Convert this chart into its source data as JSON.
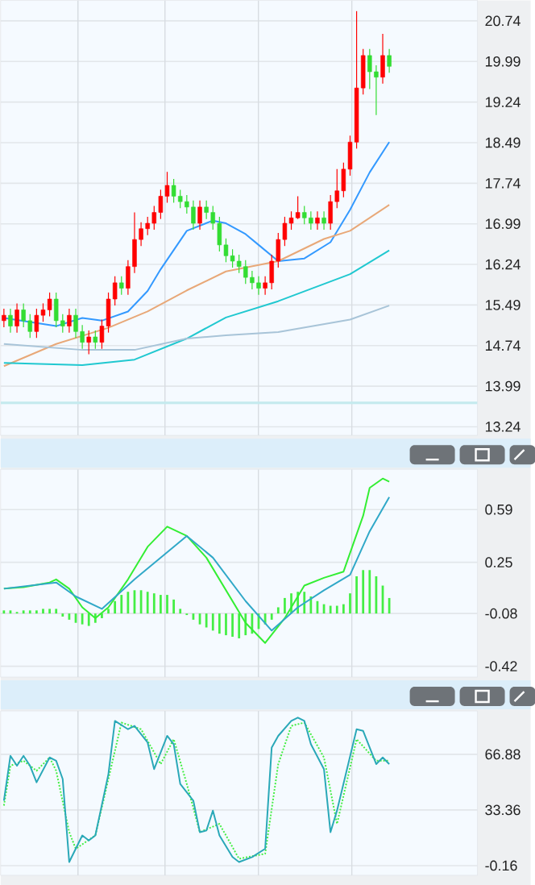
{
  "chart_data": [
    {
      "type": "candlestick",
      "categories": [
        null,
        null,
        null,
        null,
        null,
        null,
        null,
        null,
        null,
        null,
        null,
        null,
        null,
        null,
        null,
        null,
        null,
        null,
        null,
        null,
        null,
        null,
        null,
        null,
        null,
        null,
        null,
        null,
        null,
        null,
        null,
        null,
        null,
        null,
        null,
        null,
        null,
        null,
        null,
        null,
        null,
        null,
        null,
        null,
        null,
        null,
        null,
        null,
        null,
        null,
        null,
        null,
        null,
        null,
        null,
        null,
        null,
        null,
        null,
        null,
        null,
        null,
        null,
        null,
        null,
        null,
        null,
        null,
        null,
        null,
        null,
        null,
        null
      ],
      "ohlc": [
        [
          15.2,
          15.42,
          15.08,
          15.3
        ],
        [
          15.3,
          15.42,
          14.98,
          15.1
        ],
        [
          15.1,
          15.52,
          14.98,
          15.4
        ],
        [
          15.4,
          15.52,
          15.08,
          15.2
        ],
        [
          15.2,
          15.32,
          14.88,
          15.0
        ],
        [
          15.0,
          15.42,
          14.88,
          15.3
        ],
        [
          15.3,
          15.52,
          15.18,
          15.4
        ],
        [
          15.4,
          15.72,
          15.28,
          15.6
        ],
        [
          15.6,
          15.72,
          15.08,
          15.2
        ],
        [
          15.2,
          15.32,
          14.98,
          15.1
        ],
        [
          15.1,
          15.42,
          14.98,
          15.3
        ],
        [
          15.3,
          15.42,
          14.88,
          15.0
        ],
        [
          15.0,
          15.12,
          14.68,
          14.8
        ],
        [
          14.8,
          15.02,
          14.58,
          14.9
        ],
        [
          14.9,
          15.02,
          14.68,
          14.8
        ],
        [
          14.8,
          15.22,
          14.68,
          15.1
        ],
        [
          15.1,
          15.72,
          14.98,
          15.6
        ],
        [
          15.6,
          16.02,
          15.48,
          15.9
        ],
        [
          15.9,
          16.02,
          15.68,
          15.8
        ],
        [
          15.8,
          16.32,
          15.68,
          16.2
        ],
        [
          16.2,
          17.2,
          16.08,
          16.7
        ],
        [
          16.7,
          17.02,
          16.58,
          16.9
        ],
        [
          16.9,
          17.12,
          16.78,
          17.0
        ],
        [
          17.0,
          17.32,
          16.88,
          17.2
        ],
        [
          17.2,
          17.62,
          17.08,
          17.5
        ],
        [
          17.5,
          17.95,
          17.38,
          17.7
        ],
        [
          17.7,
          17.82,
          17.38,
          17.5
        ],
        [
          17.5,
          17.62,
          17.28,
          17.4
        ],
        [
          17.4,
          17.52,
          17.18,
          17.3
        ],
        [
          17.3,
          17.42,
          16.88,
          17.0
        ],
        [
          17.0,
          17.42,
          16.88,
          17.3
        ],
        [
          17.3,
          17.42,
          17.08,
          17.2
        ],
        [
          17.2,
          17.32,
          16.88,
          17.0
        ],
        [
          17.0,
          17.12,
          16.48,
          16.6
        ],
        [
          16.6,
          16.72,
          16.28,
          16.4
        ],
        [
          16.4,
          16.52,
          16.18,
          16.3
        ],
        [
          16.3,
          16.42,
          16.08,
          16.2
        ],
        [
          16.2,
          16.32,
          15.88,
          16.0
        ],
        [
          16.0,
          16.12,
          15.78,
          15.9
        ],
        [
          15.9,
          16.02,
          15.68,
          15.8
        ],
        [
          15.8,
          16.02,
          15.68,
          15.9
        ],
        [
          15.9,
          16.42,
          15.78,
          16.3
        ],
        [
          16.3,
          16.82,
          16.18,
          16.7
        ],
        [
          16.7,
          17.12,
          16.58,
          17.0
        ],
        [
          17.0,
          17.22,
          16.88,
          17.1
        ],
        [
          17.1,
          17.5,
          17.08,
          17.2
        ],
        [
          17.2,
          17.32,
          16.98,
          17.1
        ],
        [
          17.1,
          17.22,
          16.88,
          17.0
        ],
        [
          17.0,
          17.22,
          16.88,
          17.1
        ],
        [
          17.1,
          17.22,
          16.88,
          17.0
        ],
        [
          17.0,
          17.52,
          16.88,
          17.4
        ],
        [
          17.4,
          18.0,
          17.28,
          17.6
        ],
        [
          17.6,
          18.12,
          17.48,
          18.0
        ],
        [
          18.0,
          18.62,
          17.88,
          18.5
        ],
        [
          18.5,
          20.92,
          18.38,
          19.5
        ],
        [
          19.5,
          20.22,
          19.38,
          20.1
        ],
        [
          20.1,
          20.22,
          19.48,
          19.8
        ],
        [
          19.8,
          19.92,
          19.0,
          19.7
        ],
        [
          19.7,
          20.5,
          19.58,
          20.1
        ],
        [
          20.1,
          20.22,
          19.78,
          19.9
        ],
        null,
        null,
        null,
        null,
        null,
        null,
        null,
        null,
        null,
        null,
        null,
        null,
        null
      ],
      "colors": [
        "#ff0000",
        "#33dd33",
        "#ff0000",
        "#33dd33",
        "#33dd33",
        "#ff0000",
        "#ff0000",
        "#ff0000",
        "#33dd33",
        "#33dd33",
        "#ff0000",
        "#33dd33",
        "#33dd33",
        "#ff0000",
        "#33dd33",
        "#ff0000",
        "#ff0000",
        "#ff0000",
        "#33dd33",
        "#ff0000",
        "#ff0000",
        "#ff0000",
        "#ff0000",
        "#ff0000",
        "#ff0000",
        "#ff0000",
        "#33dd33",
        "#33dd33",
        "#33dd33",
        "#33dd33",
        "#ff0000",
        "#33dd33",
        "#33dd33",
        "#33dd33",
        "#33dd33",
        "#33dd33",
        "#33dd33",
        "#33dd33",
        "#33dd33",
        "#33dd33",
        "#ff0000",
        "#ff0000",
        "#ff0000",
        "#ff0000",
        "#ff0000",
        "#ff0000",
        "#33dd33",
        "#33dd33",
        "#ff0000",
        "#33dd33",
        "#ff0000",
        "#ff0000",
        "#ff0000",
        "#ff0000",
        "#ff0000",
        "#ff0000",
        "#33dd33",
        "#33dd33",
        "#ff0000",
        "#33dd33",
        null,
        null,
        null,
        null,
        null,
        null,
        null,
        null,
        null,
        null,
        null,
        null,
        null
      ],
      "series": [
        {
          "type": "line",
          "color": "#3399ff",
          "values": [
            15.25,
            null,
            null,
            null,
            null,
            null,
            null,
            null,
            15.1,
            null,
            null,
            null,
            15.25,
            null,
            null,
            15.2,
            null,
            null,
            null,
            15.37,
            null,
            null,
            15.75,
            null,
            16.15,
            null,
            null,
            null,
            16.86,
            null,
            null,
            null,
            17.05,
            null,
            17.0,
            null,
            null,
            16.8,
            null,
            16.6,
            null,
            null,
            16.3,
            null,
            null,
            null,
            16.35,
            null,
            null,
            null,
            16.65,
            null,
            null,
            17.25,
            null,
            null,
            17.94,
            null,
            null,
            18.5,
            null,
            null,
            null,
            null,
            null,
            null,
            null,
            null,
            null,
            null,
            null,
            null,
            null
          ]
        },
        {
          "type": "line",
          "color": "#e8a878",
          "values": [
            14.36,
            null,
            null,
            null,
            null,
            null,
            null,
            null,
            14.77,
            null,
            null,
            null,
            null,
            null,
            null,
            null,
            15.07,
            null,
            null,
            null,
            null,
            null,
            15.37,
            null,
            null,
            null,
            null,
            null,
            15.76,
            null,
            null,
            null,
            null,
            null,
            16.11,
            null,
            null,
            null,
            null,
            null,
            null,
            null,
            16.3,
            null,
            null,
            null,
            null,
            null,
            null,
            16.71,
            null,
            null,
            null,
            16.86,
            null,
            null,
            null,
            null,
            null,
            17.34,
            null,
            null,
            null,
            null,
            null,
            null,
            null,
            null,
            null,
            null,
            null,
            null,
            null
          ]
        },
        {
          "type": "line",
          "color": "#20c8d0",
          "values": [
            14.42,
            null,
            null,
            null,
            null,
            null,
            null,
            null,
            null,
            null,
            null,
            null,
            14.38,
            null,
            null,
            null,
            null,
            null,
            null,
            null,
            14.48,
            null,
            null,
            null,
            null,
            null,
            null,
            null,
            14.87,
            null,
            null,
            null,
            null,
            null,
            15.26,
            null,
            null,
            null,
            null,
            null,
            null,
            null,
            15.56,
            null,
            null,
            null,
            null,
            null,
            null,
            null,
            null,
            null,
            null,
            16.06,
            null,
            null,
            null,
            null,
            null,
            16.5,
            null,
            null,
            null,
            null,
            null,
            null,
            null,
            null,
            null,
            null,
            null,
            null,
            null
          ]
        },
        {
          "type": "line",
          "color": "#a8c4d8",
          "values": [
            14.77,
            null,
            null,
            null,
            null,
            null,
            null,
            null,
            null,
            null,
            null,
            null,
            14.66,
            null,
            null,
            null,
            null,
            null,
            null,
            null,
            14.66,
            null,
            null,
            null,
            null,
            null,
            null,
            null,
            14.87,
            null,
            null,
            null,
            null,
            null,
            14.93,
            null,
            null,
            null,
            null,
            null,
            null,
            null,
            14.99,
            null,
            null,
            null,
            null,
            null,
            null,
            null,
            null,
            null,
            null,
            15.22,
            null,
            null,
            null,
            null,
            null,
            15.48,
            null,
            null,
            null,
            null,
            null,
            null,
            null,
            null,
            null,
            null,
            null,
            null,
            null
          ]
        }
      ],
      "ylim": [
        13.08,
        21.12
      ],
      "yticks": [
        13.24,
        13.99,
        14.74,
        15.49,
        16.24,
        16.99,
        17.74,
        18.49,
        19.24,
        19.99,
        20.74
      ],
      "grid": "y",
      "tick_labels": "y",
      "ref_lines": [
        {
          "axis": "y",
          "value": 13.68,
          "color": "#c4eaee"
        }
      ]
    },
    {
      "type": "line",
      "categories": [
        null,
        null,
        null,
        null,
        null,
        null,
        null,
        null,
        null,
        null,
        null,
        null,
        null,
        null,
        null,
        null,
        null,
        null,
        null,
        null,
        null,
        null,
        null,
        null,
        null,
        null,
        null,
        null,
        null,
        null,
        null,
        null,
        null,
        null,
        null,
        null,
        null,
        null,
        null,
        null,
        null,
        null,
        null,
        null,
        null,
        null,
        null,
        null,
        null,
        null,
        null,
        null,
        null,
        null,
        null,
        null,
        null,
        null,
        null,
        null,
        null,
        null,
        null,
        null,
        null,
        null,
        null,
        null,
        null,
        null,
        null,
        null,
        null
      ],
      "series": [
        {
          "type": "bar",
          "color": "#44ee44",
          "base": [
            -0.08,
            -0.08,
            -0.08,
            -0.08,
            -0.08,
            -0.08,
            -0.08,
            -0.08,
            -0.08,
            -0.08,
            -0.08,
            -0.08,
            -0.08,
            -0.08,
            -0.08,
            -0.08,
            -0.08,
            -0.08,
            -0.08,
            -0.08,
            -0.08,
            -0.08,
            -0.08,
            -0.08,
            -0.08,
            -0.08,
            -0.08,
            -0.08,
            -0.08,
            -0.08,
            -0.08,
            -0.08,
            -0.08,
            -0.08,
            -0.08,
            -0.08,
            -0.08,
            -0.08,
            -0.08,
            -0.08,
            -0.08,
            -0.08,
            -0.08,
            -0.08,
            -0.08,
            -0.08,
            -0.08,
            -0.08,
            -0.08,
            -0.08,
            -0.08,
            -0.08,
            -0.08,
            -0.08,
            -0.08,
            -0.08,
            -0.08,
            -0.08,
            -0.08,
            -0.08,
            null,
            null,
            null,
            null,
            null,
            null,
            null,
            null,
            null,
            null,
            null,
            null,
            null
          ],
          "values": [
            0.02,
            0.02,
            0.01,
            0.02,
            0.02,
            0.02,
            0.03,
            0.03,
            0.03,
            -0.02,
            -0.04,
            -0.06,
            -0.07,
            -0.08,
            -0.06,
            -0.03,
            0.03,
            0.08,
            0.12,
            0.14,
            0.15,
            0.15,
            0.14,
            0.13,
            0.12,
            0.12,
            0.09,
            0.03,
            -0.01,
            -0.04,
            -0.07,
            -0.09,
            -0.11,
            -0.13,
            -0.14,
            -0.15,
            -0.16,
            -0.14,
            -0.13,
            -0.1,
            -0.07,
            -0.04,
            0.04,
            0.1,
            0.13,
            0.14,
            0.14,
            0.11,
            0.08,
            0.06,
            0.05,
            0.05,
            0.06,
            0.13,
            0.24,
            0.28,
            0.28,
            0.24,
            0.18,
            0.1,
            null,
            null,
            null,
            null,
            null,
            null,
            null,
            null,
            null,
            null,
            null,
            null,
            null
          ]
        },
        {
          "type": "line",
          "color": "#33ee33",
          "values": [
            0.08,
            null,
            null,
            0.09,
            null,
            null,
            null,
            0.12,
            0.14,
            null,
            0.08,
            null,
            -0.04,
            null,
            -0.11,
            null,
            -0.04,
            null,
            null,
            0.14,
            null,
            null,
            0.35,
            null,
            null,
            0.48,
            null,
            null,
            0.42,
            null,
            null,
            0.28,
            null,
            null,
            0.07,
            null,
            null,
            -0.14,
            null,
            null,
            -0.27,
            null,
            null,
            -0.11,
            null,
            null,
            0.1,
            null,
            null,
            0.15,
            null,
            null,
            0.19,
            null,
            null,
            0.55,
            0.73,
            null,
            0.79,
            0.77,
            null,
            null,
            null,
            null,
            null,
            null,
            null,
            null,
            null,
            null,
            null,
            null,
            null
          ]
        },
        {
          "type": "line",
          "color": "#30a8c8",
          "values": [
            0.08,
            null,
            null,
            null,
            null,
            null,
            null,
            null,
            0.12,
            null,
            null,
            0.03,
            null,
            null,
            null,
            -0.05,
            null,
            null,
            null,
            null,
            0.14,
            null,
            null,
            null,
            null,
            null,
            null,
            null,
            0.42,
            null,
            null,
            null,
            0.28,
            null,
            null,
            null,
            null,
            0.0,
            null,
            null,
            null,
            -0.19,
            null,
            null,
            null,
            -0.04,
            null,
            null,
            null,
            0.07,
            null,
            null,
            null,
            0.17,
            null,
            null,
            0.45,
            null,
            null,
            0.67,
            null,
            null,
            null,
            null,
            null,
            null,
            null,
            null,
            null,
            null,
            null,
            null,
            null
          ]
        }
      ],
      "ylim": [
        -0.49,
        0.85
      ],
      "yticks": [
        -0.42,
        -0.08,
        0.25,
        0.59
      ],
      "grid": "y",
      "tick_labels": "y"
    },
    {
      "type": "line",
      "categories": [
        null,
        null,
        null,
        null,
        null,
        null,
        null,
        null,
        null,
        null,
        null,
        null,
        null,
        null,
        null,
        null,
        null,
        null,
        null,
        null,
        null,
        null,
        null,
        null,
        null,
        null,
        null,
        null,
        null,
        null,
        null,
        null,
        null,
        null,
        null,
        null,
        null,
        null,
        null,
        null,
        null,
        null,
        null,
        null,
        null,
        null,
        null,
        null,
        null,
        null,
        null,
        null,
        null,
        null,
        null,
        null,
        null,
        null,
        null,
        null,
        null,
        null,
        null,
        null,
        null,
        null,
        null,
        null,
        null,
        null,
        null,
        null,
        null
      ],
      "series": [
        {
          "color": "#44ee44",
          "line_style": "dotted",
          "values": [
            36,
            60,
            null,
            63,
            null,
            57,
            null,
            65,
            57,
            null,
            20,
            10,
            null,
            null,
            18,
            null,
            52,
            null,
            86,
            null,
            null,
            82,
            null,
            null,
            61,
            null,
            76,
            null,
            49,
            null,
            20,
            null,
            null,
            25,
            null,
            null,
            4,
            null,
            null,
            null,
            7,
            null,
            61,
            null,
            84,
            null,
            86,
            null,
            null,
            65,
            null,
            25,
            null,
            null,
            76,
            null,
            null,
            63,
            null,
            63,
            null,
            null,
            null,
            null,
            null,
            null,
            null,
            null,
            null,
            null,
            null,
            null,
            null
          ]
        },
        {
          "color": "#2aa8b8",
          "values": [
            39,
            66,
            60,
            66,
            60,
            50,
            null,
            65,
            63,
            52,
            2,
            null,
            18,
            15,
            18,
            null,
            55,
            87,
            null,
            82,
            84,
            null,
            74,
            58,
            null,
            78,
            73,
            49,
            null,
            39,
            20,
            21,
            33,
            18,
            null,
            5,
            2,
            null,
            5,
            null,
            10,
            71,
            78,
            null,
            87,
            89,
            87,
            73,
            null,
            58,
            20,
            33,
            null,
            null,
            82,
            81,
            null,
            61,
            65,
            61,
            null,
            null,
            null,
            null,
            null,
            null,
            null,
            null,
            null,
            null,
            null,
            null,
            null
          ]
        }
      ],
      "ylim": [
        -6,
        93
      ],
      "yticks": [
        -0.16,
        33.36,
        66.88
      ],
      "grid": "y",
      "tick_labels": "y"
    }
  ]
}
